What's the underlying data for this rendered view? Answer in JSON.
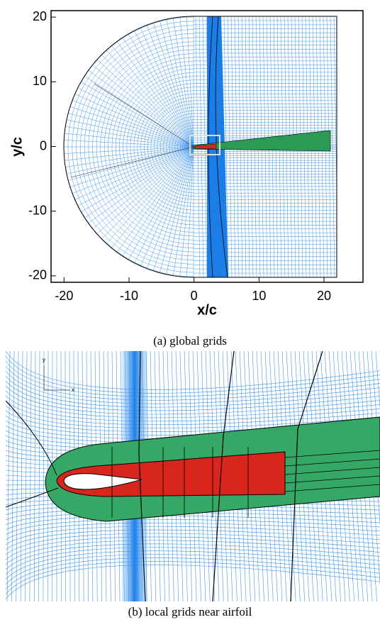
{
  "chart_data": [
    {
      "type": "mesh",
      "xlabel": "x/c",
      "ylabel": "y/c",
      "xlim": [
        -22,
        26
      ],
      "ylim": [
        -21,
        21
      ],
      "xticks": [
        -20,
        -10,
        0,
        10,
        20
      ],
      "yticks": [
        -20,
        -10,
        0,
        10,
        20
      ],
      "caption": "(a) global grids"
    },
    {
      "type": "mesh",
      "xlabel": "x",
      "ylabel": "y",
      "caption": "(b) local grids near airfoil"
    }
  ]
}
